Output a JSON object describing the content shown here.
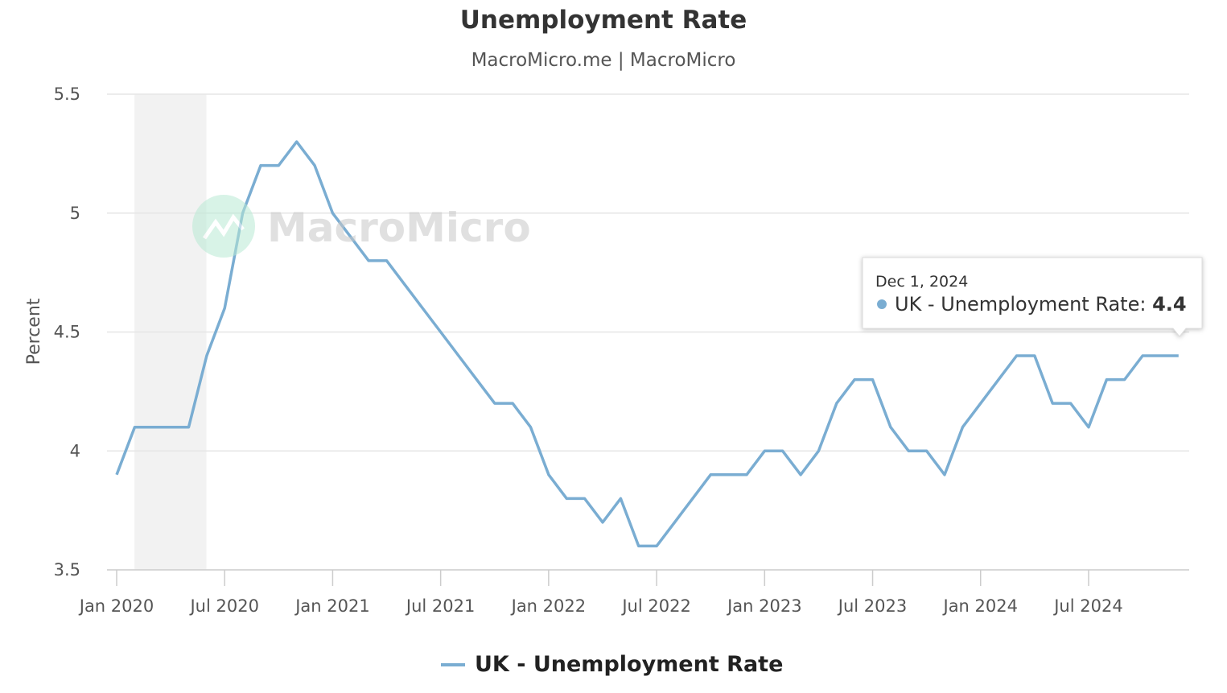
{
  "chart_data": {
    "type": "line",
    "title": "Unemployment Rate",
    "subtitle": "MacroMicro.me | MacroMicro",
    "watermark": "MacroMicro",
    "ylabel": "Percent",
    "xlabel": "",
    "ylim": [
      3.5,
      5.5
    ],
    "yticks": [
      "3.5",
      "4",
      "4.5",
      "5",
      "5.5"
    ],
    "xticks": [
      "Jan 2020",
      "Jul 2020",
      "Jan 2021",
      "Jul 2021",
      "Jan 2022",
      "Jul 2022",
      "Jan 2023",
      "Jul 2023",
      "Jan 2024",
      "Jul 2024"
    ],
    "grid": true,
    "legend_position": "bottom",
    "shaded_period": [
      "2020-02",
      "2020-05"
    ],
    "x_start": "2020-01",
    "x_frequency": "monthly",
    "series": [
      {
        "name": "UK - Unemployment Rate",
        "color": "#7aadd2",
        "values": [
          3.9,
          4.1,
          4.1,
          4.1,
          4.1,
          4.4,
          4.6,
          5.0,
          5.2,
          5.2,
          5.3,
          5.2,
          5.0,
          4.9,
          4.8,
          4.8,
          4.7,
          4.6,
          4.5,
          4.4,
          4.3,
          4.2,
          4.2,
          4.1,
          3.9,
          3.8,
          3.8,
          3.7,
          3.8,
          3.6,
          3.6,
          3.7,
          3.8,
          3.9,
          3.9,
          3.9,
          4.0,
          4.0,
          3.9,
          4.0,
          4.2,
          4.3,
          4.3,
          4.1,
          4.0,
          4.0,
          3.9,
          4.1,
          4.2,
          4.3,
          4.4,
          4.4,
          4.2,
          4.2,
          4.1,
          4.3,
          4.3,
          4.4,
          4.4,
          4.4
        ]
      }
    ],
    "tooltip": {
      "date": "Dec 1, 2024",
      "label": "UK - Unemployment Rate: ",
      "value": "4.4"
    }
  }
}
